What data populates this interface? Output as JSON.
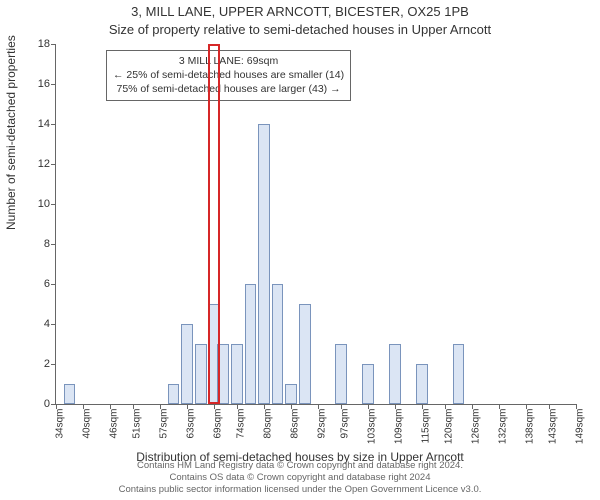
{
  "title_line1": "3, MILL LANE, UPPER ARNCOTT, BICESTER, OX25 1PB",
  "title_line2": "Size of property relative to semi-detached houses in Upper Arncott",
  "y_axis_label": "Number of semi-detached properties",
  "x_axis_label": "Distribution of semi-detached houses by size in Upper Arncott",
  "footnote_line1": "Contains HM Land Registry data © Crown copyright and database right 2024.",
  "footnote_line2": "Contains OS data © Crown copyright and database right 2024",
  "footnote_line3": "Contains public sector information licensed under the Open Government Licence v3.0.",
  "annotation": {
    "line1": "3 MILL LANE: 69sqm",
    "line2": "← 25% of semi-detached houses are smaller (14)",
    "line3": "75% of semi-detached houses are larger (43) →"
  },
  "chart": {
    "type": "histogram",
    "ylim": [
      0,
      18
    ],
    "ytick_step": 2,
    "xticks": [
      34,
      40,
      46,
      51,
      57,
      63,
      69,
      74,
      80,
      86,
      92,
      97,
      103,
      109,
      115,
      120,
      126,
      132,
      138,
      143,
      149
    ],
    "xtick_suffix": "sqm",
    "bar_color": "#dbe5f4",
    "bar_border_color": "#7a94bc",
    "highlight_color": "#d62728",
    "background_color": "#ffffff",
    "axis_color": "#666666",
    "bars": [
      {
        "x": 37,
        "count": 1
      },
      {
        "x": 60,
        "count": 1
      },
      {
        "x": 63,
        "count": 4
      },
      {
        "x": 66,
        "count": 3
      },
      {
        "x": 69,
        "count": 5
      },
      {
        "x": 71,
        "count": 3
      },
      {
        "x": 74,
        "count": 3
      },
      {
        "x": 77,
        "count": 6
      },
      {
        "x": 80,
        "count": 14
      },
      {
        "x": 83,
        "count": 6
      },
      {
        "x": 86,
        "count": 1
      },
      {
        "x": 89,
        "count": 5
      },
      {
        "x": 97,
        "count": 3
      },
      {
        "x": 103,
        "count": 2
      },
      {
        "x": 109,
        "count": 3
      },
      {
        "x": 115,
        "count": 2
      },
      {
        "x": 123,
        "count": 3
      }
    ],
    "highlight_x": 69,
    "x_range": [
      34,
      149
    ],
    "bar_width_sqm": 2.6,
    "title_fontsize": 13,
    "label_fontsize": 12,
    "tick_fontsize": 11,
    "annotation_fontsize": 10.5
  }
}
